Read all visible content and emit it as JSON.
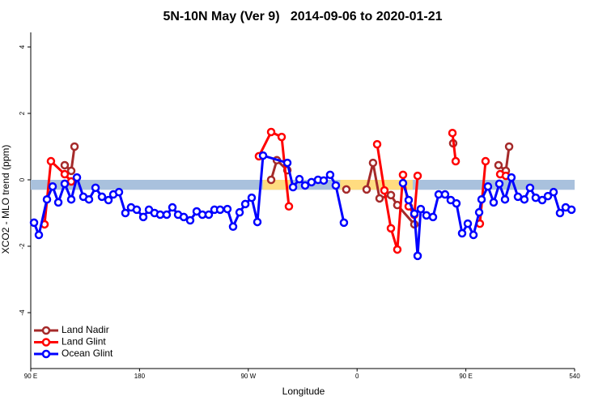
{
  "chart_data": {
    "type": "line",
    "title": "5N-10N May (Ver 9)   2014-09-06 to 2020-01-21",
    "xlabel": "Longitude",
    "ylabel": "XCO2 - MLO trend (ppm)",
    "xlim": [
      90,
      540
    ],
    "ylim": [
      -5.6,
      4.4
    ],
    "xticks": [
      {
        "value": 90,
        "label": "90 E"
      },
      180,
      {
        "value": 270,
        "label": "90 W"
      },
      {
        "value": 360,
        "label": "0"
      },
      {
        "value": 450,
        "label": "90 E"
      },
      540
    ],
    "yticks": [
      -4,
      -2,
      0,
      2,
      4
    ],
    "legend": "bottom-left",
    "band": {
      "ylim": [
        -0.3,
        0
      ],
      "color": "#a9c1dd"
    },
    "highlight": {
      "spans": [
        [
          282,
          306
        ],
        [
          346,
          406
        ]
      ],
      "color": "#ffdc80"
    },
    "series": [
      {
        "name": "Land Nadir",
        "color": "#a52a2a",
        "x": [
          118.1,
          123.5,
          126.2,
          200,
          288.9,
          293.6,
          302.3,
          320,
          351.1,
          360,
          367.9,
          373.2,
          378.6,
          388.0,
          393.3,
          407.4,
          420,
          439.5,
          460,
          477.0,
          483.1,
          485.8
        ],
        "values": [
          0.44,
          0.27,
          1.0,
          null,
          0,
          0.59,
          0.29,
          null,
          -0.29,
          null,
          -0.29,
          0.51,
          -0.56,
          -0.46,
          -0.76,
          -1.34,
          null,
          1.1,
          null,
          0.44,
          0.27,
          1.0
        ]
      },
      {
        "name": "Land Glint",
        "color": "#ff0000",
        "x": [
          101.4,
          106.7,
          118.1,
          123.5,
          200,
          278.8,
          288.9,
          297.6,
          303.6,
          340,
          376.6,
          382.6,
          388.0,
          393.3,
          398.0,
          402.7,
          407.4,
          410.1,
          420,
          438.9,
          441.6,
          450,
          461.6,
          466.3,
          470,
          478.4,
          483.1
        ],
        "values": [
          -1.34,
          0.56,
          0.17,
          -0.05,
          null,
          0.71,
          1.44,
          1.29,
          -0.8,
          null,
          1.07,
          -0.32,
          -1.46,
          -2.1,
          0.15,
          -0.8,
          -1.05,
          0.12,
          null,
          1.41,
          0.56,
          null,
          -1.32,
          0.56,
          null,
          0.17,
          0.12
        ]
      },
      {
        "name": "Ocean Glint",
        "color": "#0000ff",
        "x": [
          92.7,
          96.7,
          103.4,
          108.1,
          112.8,
          118.1,
          123.5,
          128.2,
          133.5,
          138.2,
          143.6,
          148.9,
          154.3,
          158.3,
          163.0,
          168.3,
          173.0,
          177.7,
          183.1,
          187.8,
          192.4,
          197.1,
          202.5,
          207.2,
          211.9,
          216.6,
          221.9,
          227.3,
          232.0,
          237.3,
          242.0,
          246.7,
          252.7,
          257.4,
          262.8,
          267.5,
          272.8,
          277.5,
          282.2,
          302.3,
          307.0,
          312.3,
          317.0,
          322.3,
          327.7,
          332.4,
          337.7,
          342.4,
          349.1,
          380,
          398.0,
          402.7,
          407.4,
          410.1,
          412.7,
          417.4,
          422.8,
          427.5,
          432.8,
          437.5,
          442.2,
          446.9,
          451.6,
          456.3,
          461.0,
          463.0,
          468.3,
          473.0,
          477.7,
          482.4,
          487.7,
          493.1,
          498.4,
          503.1,
          507.8,
          513.2,
          517.9,
          522.6,
          527.9,
          532.6,
          537.4
        ],
        "values": [
          -1.29,
          -1.66,
          -0.59,
          -0.2,
          -0.68,
          -0.12,
          -0.59,
          0.07,
          -0.51,
          -0.59,
          -0.24,
          -0.51,
          -0.61,
          -0.44,
          -0.37,
          -1.0,
          -0.83,
          -0.9,
          -1.12,
          -0.9,
          -1.0,
          -1.05,
          -1.05,
          -0.83,
          -1.05,
          -1.12,
          -1.22,
          -0.95,
          -1.05,
          -1.05,
          -0.9,
          -0.9,
          -0.88,
          -1.41,
          -0.98,
          -0.73,
          -0.54,
          -1.27,
          0.73,
          0.51,
          -0.22,
          0.02,
          -0.17,
          -0.07,
          0,
          -0.02,
          0.15,
          -0.17,
          -1.29,
          null,
          -0.1,
          -0.61,
          -1.02,
          -2.29,
          -0.88,
          -1.07,
          -1.12,
          -0.44,
          -0.44,
          -0.61,
          -0.71,
          -1.61,
          -1.32,
          -1.66,
          -0.98,
          -0.59,
          -0.2,
          -0.68,
          -0.12,
          -0.59,
          0.07,
          -0.51,
          -0.59,
          -0.24,
          -0.54,
          -0.61,
          -0.49,
          -0.37,
          -1.0,
          -0.83,
          -0.9
        ]
      }
    ]
  }
}
